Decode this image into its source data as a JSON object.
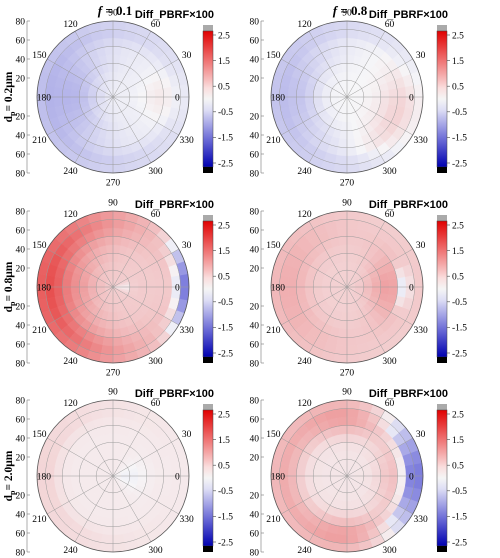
{
  "figure": {
    "column_titles": [
      {
        "label": "f",
        "value": " = 0.1"
      },
      {
        "label": "f",
        "value": " = 0.8"
      }
    ],
    "row_labels": [
      "d",
      "d",
      "d"
    ],
    "row_label_sub": [
      "p",
      "p",
      "p"
    ],
    "row_label_rest": [
      "= 0.2μm",
      "= 0.8μm",
      "= 2.0μm"
    ],
    "colorbar_label": "Diff_PBRF×100",
    "colorbar_ticks": [
      "2.5",
      "1.5",
      "0.5",
      "-0.5",
      "-1.5",
      "-2.5"
    ],
    "azimuth_labels": [
      "0",
      "30",
      "60",
      "90",
      "120",
      "150",
      "180",
      "210",
      "240",
      "270",
      "300",
      "330"
    ],
    "zenith_ticks": [
      "80",
      "60",
      "40",
      "20",
      "0",
      "20",
      "40",
      "60",
      "80"
    ],
    "colors": {
      "positive": "#e8201e",
      "negative": "#2323c8",
      "neutral": "#f5f5f5",
      "over": "#aaaaaa",
      "under": "#000000"
    }
  },
  "chart_data": [
    {
      "type": "heatmap",
      "projection": "polar",
      "panel": "f=0.1, dp=0.2μm",
      "value_label": "Diff_PBRF×100",
      "clim": [
        -2.5,
        2.5
      ],
      "field": {
        "base": -0.05,
        "terms": [
          {
            "amp": -0.55,
            "center_az": 180,
            "az_width": 70,
            "zen_center": 50,
            "zen_width": 30
          },
          {
            "amp": -0.35,
            "center_az": 180,
            "az_width": 160,
            "zen_center": 80,
            "zen_width": 15
          },
          {
            "amp": 0.15,
            "center_az": 0,
            "az_width": 30,
            "zen_center": 60,
            "zen_width": 25
          }
        ]
      }
    },
    {
      "type": "heatmap",
      "projection": "polar",
      "panel": "f=0.8, dp=0.2μm",
      "value_label": "Diff_PBRF×100",
      "clim": [
        -2.5,
        2.5
      ],
      "field": {
        "base": 0.0,
        "terms": [
          {
            "amp": -0.45,
            "center_az": 180,
            "az_width": 70,
            "zen_center": 60,
            "zen_width": 25
          },
          {
            "amp": -0.3,
            "center_az": 180,
            "az_width": 160,
            "zen_center": 82,
            "zen_width": 12
          },
          {
            "amp": 0.3,
            "center_az": 340,
            "az_width": 45,
            "zen_center": 65,
            "zen_width": 25
          }
        ]
      }
    },
    {
      "type": "heatmap",
      "projection": "polar",
      "panel": "f=0.1, dp=0.8μm",
      "value_label": "Diff_PBRF×100",
      "clim": [
        -2.5,
        2.5
      ],
      "field": {
        "base": 0.35,
        "terms": [
          {
            "amp": 1.3,
            "center_az": 180,
            "az_width": 95,
            "zen_center": 78,
            "zen_width": 22
          },
          {
            "amp": 0.5,
            "center_az": 180,
            "az_width": 70,
            "zen_center": 45,
            "zen_width": 25
          },
          {
            "amp": -1.7,
            "center_az": 0,
            "az_width": 32,
            "zen_center": 84,
            "zen_width": 8
          },
          {
            "amp": -0.35,
            "center_az": 0,
            "az_width": 20,
            "zen_center": 10,
            "zen_width": 10
          }
        ]
      }
    },
    {
      "type": "heatmap",
      "projection": "polar",
      "panel": "f=0.8, dp=0.8μm",
      "value_label": "Diff_PBRF×100",
      "clim": [
        -2.5,
        2.5
      ],
      "field": {
        "base": 0.3,
        "terms": [
          {
            "amp": 0.35,
            "center_az": 180,
            "az_width": 80,
            "zen_center": 70,
            "zen_width": 25
          },
          {
            "amp": 0.5,
            "center_az": 0,
            "az_width": 45,
            "zen_center": 50,
            "zen_width": 25
          },
          {
            "amp": -0.9,
            "center_az": 0,
            "az_width": 22,
            "zen_center": 68,
            "zen_width": 7
          }
        ]
      }
    },
    {
      "type": "heatmap",
      "projection": "polar",
      "panel": "f=0.1, dp=2.0μm",
      "value_label": "Diff_PBRF×100",
      "clim": [
        -2.5,
        2.5
      ],
      "field": {
        "base": 0.08,
        "terms": [
          {
            "amp": 0.2,
            "center_az": 180,
            "az_width": 90,
            "zen_center": 80,
            "zen_width": 15
          },
          {
            "amp": -0.12,
            "center_az": 0,
            "az_width": 40,
            "zen_center": 20,
            "zen_width": 20
          }
        ]
      }
    },
    {
      "type": "heatmap",
      "projection": "polar",
      "panel": "f=0.8, dp=2.0μm",
      "value_label": "Diff_PBRF×100",
      "clim": [
        -2.5,
        2.5
      ],
      "field": {
        "base": 0.12,
        "terms": [
          {
            "amp": 0.55,
            "center_az": 180,
            "az_width": 90,
            "zen_center": 75,
            "zen_width": 20
          },
          {
            "amp": 0.5,
            "center_az": 90,
            "az_width": 40,
            "zen_center": 70,
            "zen_width": 20
          },
          {
            "amp": 0.5,
            "center_az": 270,
            "az_width": 40,
            "zen_center": 70,
            "zen_width": 20
          },
          {
            "amp": -1.7,
            "center_az": 0,
            "az_width": 42,
            "zen_center": 80,
            "zen_width": 12
          },
          {
            "amp": 0.35,
            "center_az": 0,
            "az_width": 45,
            "zen_center": 55,
            "zen_width": 18
          }
        ]
      }
    }
  ]
}
